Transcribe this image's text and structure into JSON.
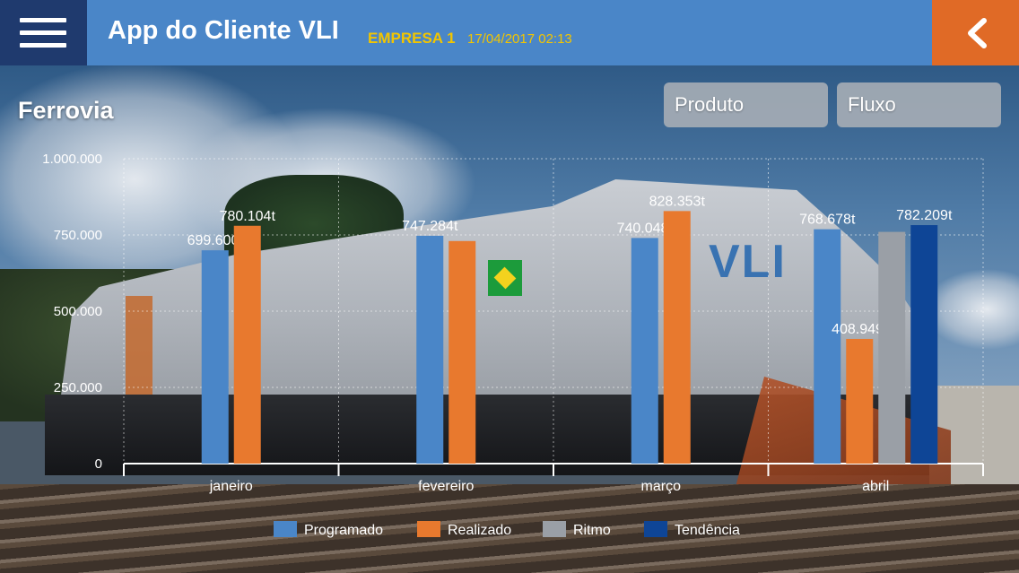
{
  "header": {
    "title": "App do Cliente VLI",
    "company": "EMPRESA 1",
    "datetime": "17/04/2017 02:13",
    "menu_icon": "hamburger-menu-icon",
    "back_icon": "chevron-left-icon"
  },
  "section_title": "Ferrovia",
  "filters": {
    "produto": "Produto",
    "fluxo": "Fluxo"
  },
  "colors": {
    "header_bg": "#4a86c8",
    "menu_bg": "#1f3a6e",
    "back_bg": "#e06a26",
    "accent_text": "#f2c500",
    "programado": "#4a86c8",
    "realizado": "#e8792e",
    "ritmo": "#9a9fa6",
    "tendencia": "#0e4596"
  },
  "chart_data": {
    "type": "bar",
    "categories": [
      "janeiro",
      "fevereiro",
      "março",
      "abril"
    ],
    "ylim": [
      0,
      1000000
    ],
    "yticks": [
      {
        "value": 0,
        "label": "0"
      },
      {
        "value": 250000,
        "label": "250.000"
      },
      {
        "value": 500000,
        "label": "500.000"
      },
      {
        "value": 750000,
        "label": "750.000"
      },
      {
        "value": 1000000,
        "label": "1.000.000"
      }
    ],
    "grid": true,
    "legend_position": "bottom",
    "series": [
      {
        "name": "Programado",
        "key": "programado",
        "values": [
          699600,
          747284,
          740048,
          768678
        ],
        "labels": [
          "699.600t",
          "747.284t",
          "740.048t",
          "768.678t"
        ]
      },
      {
        "name": "Realizado",
        "key": "realizado",
        "values": [
          780104,
          730000,
          828353,
          408949
        ],
        "labels": [
          "780.104t",
          null,
          "828.353t",
          "408.949t"
        ]
      },
      {
        "name": "Ritmo",
        "key": "ritmo",
        "values": [
          null,
          null,
          null,
          760000
        ],
        "labels": [
          null,
          null,
          null,
          null
        ]
      },
      {
        "name": "Tendência",
        "key": "tendencia",
        "values": [
          null,
          null,
          null,
          782209
        ],
        "labels": [
          null,
          null,
          null,
          "782.209t"
        ]
      }
    ]
  }
}
